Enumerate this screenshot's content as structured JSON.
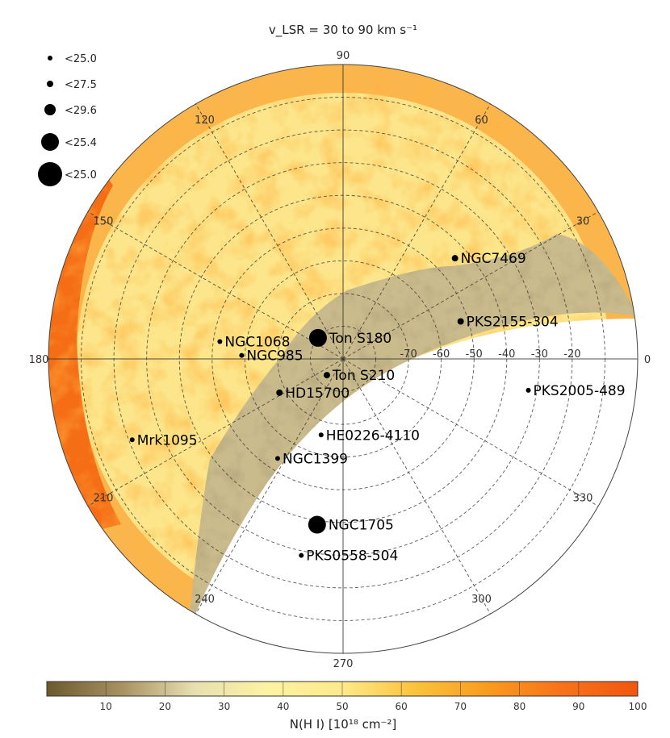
{
  "chart_data": {
    "type": "scatter",
    "projection": "polar-hemisphere",
    "title": "v_LSR = 30 to 90 km s⁻¹",
    "longitude_ticks": [
      {
        "angle": 90,
        "label": "90"
      },
      {
        "angle": 60,
        "label": "60"
      },
      {
        "angle": 30,
        "label": "30"
      },
      {
        "angle": 0,
        "label": "0"
      },
      {
        "angle": 330,
        "label": "330"
      },
      {
        "angle": 300,
        "label": "300"
      },
      {
        "angle": 270,
        "label": "270"
      },
      {
        "angle": 240,
        "label": "240"
      },
      {
        "angle": 210,
        "label": "210"
      },
      {
        "angle": 180,
        "label": "180"
      },
      {
        "angle": 150,
        "label": "150"
      },
      {
        "angle": 120,
        "label": "120"
      }
    ],
    "latitude_ticks": [
      {
        "lat": -70,
        "label": "-70"
      },
      {
        "lat": -60,
        "label": "-60"
      },
      {
        "lat": -50,
        "label": "-50"
      },
      {
        "lat": -40,
        "label": "-40"
      },
      {
        "lat": -30,
        "label": "-30"
      },
      {
        "lat": -20,
        "label": "-20"
      }
    ],
    "legend": {
      "placement": "top-left",
      "entries": [
        {
          "label": "<25.0",
          "size_rank": 1
        },
        {
          "label": "<27.5",
          "size_rank": 2
        },
        {
          "label": "<29.6",
          "size_rank": 3
        },
        {
          "label": "<25.4",
          "size_rank": 4
        },
        {
          "label": "<25.0",
          "size_rank": 5
        }
      ]
    },
    "sources": [
      {
        "name": "NGC1068",
        "l": 172,
        "b": -52,
        "size_rank": 1
      },
      {
        "name": "NGC985",
        "l": 178,
        "b": -59,
        "size_rank": 1
      },
      {
        "name": "NGC7469",
        "l": 42,
        "b": -44,
        "size_rank": 2
      },
      {
        "name": "PKS2155-304",
        "l": 17.7,
        "b": -52.3,
        "size_rank": 2
      },
      {
        "name": "Ton S180",
        "l": 140,
        "b": -80,
        "size_rank": 4
      },
      {
        "name": "Ton S210",
        "l": 225,
        "b": -83,
        "size_rank": 2
      },
      {
        "name": "PKS2005-489",
        "l": 350.4,
        "b": -32.6,
        "size_rank": 1
      },
      {
        "name": "HE0226-4110",
        "l": 253.9,
        "b": -65.8,
        "size_rank": 1
      },
      {
        "name": "HD15700",
        "l": 208,
        "b": -68,
        "size_rank": 2
      },
      {
        "name": "Mrk1095",
        "l": 201,
        "b": -21,
        "size_rank": 1
      },
      {
        "name": "NGC1399",
        "l": 236.7,
        "b": -53.6,
        "size_rank": 1
      },
      {
        "name": "NGC1705",
        "l": 261.1,
        "b": -38.7,
        "size_rank": 4
      },
      {
        "name": "PKS0558-504",
        "l": 258,
        "b": -28.6,
        "size_rank": 1
      }
    ],
    "colorbar": {
      "label": "N(H I) [10¹⁸ cm⁻²]",
      "ticks": [
        "10",
        "20",
        "30",
        "40",
        "50",
        "60",
        "70",
        "80",
        "90",
        "100"
      ],
      "range": [
        0,
        100
      ],
      "colors": [
        "#6b5a2e",
        "#a89060",
        "#e6e0b0",
        "#fdf3a2",
        "#fde98a",
        "#fbc23c",
        "#f99a1e",
        "#f7721a",
        "#f2560f"
      ]
    }
  }
}
